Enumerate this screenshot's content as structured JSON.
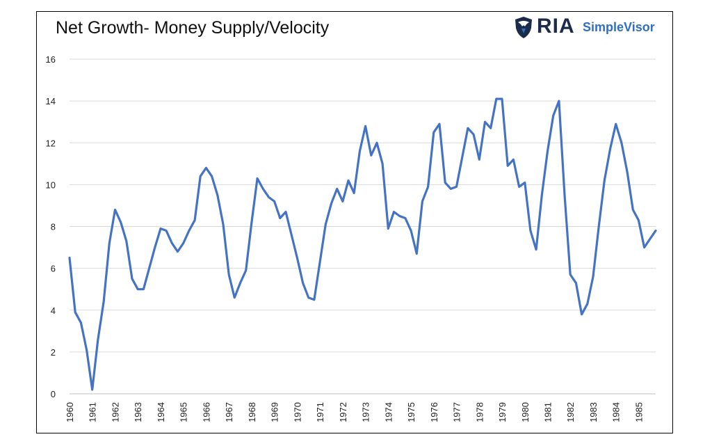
{
  "header": {
    "title": "Net Growth- Money Supply/Velocity"
  },
  "logo": {
    "brand": "RIA",
    "product": "SimpleVisor",
    "icon": "eagle-shield-icon",
    "brand_color": "#1c2b4a",
    "product_color": "#2f6fc4"
  },
  "chart_data": {
    "type": "line",
    "title": "Net Growth- Money Supply/Velocity",
    "xlabel": "",
    "ylabel": "",
    "ylim": [
      0,
      16
    ],
    "yticks": [
      "0",
      "2",
      "4",
      "6",
      "8",
      "10",
      "12",
      "14",
      "16"
    ],
    "xticks": [
      "1960",
      "1961",
      "1962",
      "1963",
      "1964",
      "1965",
      "1966",
      "1967",
      "1968",
      "1969",
      "1970",
      "1971",
      "1972",
      "1973",
      "1974",
      "1975",
      "1976",
      "1977",
      "1978",
      "1979",
      "1980",
      "1981",
      "1982",
      "1983",
      "1984",
      "1985"
    ],
    "grid": true,
    "legend": "none",
    "line_color": "#4472c4",
    "series": [
      {
        "x": [
          1960.0,
          1960.25,
          1960.5,
          1960.75,
          1961.0,
          1961.25,
          1961.5,
          1961.75,
          1962.0,
          1962.25,
          1962.5,
          1962.75,
          1963.0,
          1963.25,
          1963.5,
          1963.75,
          1964.0,
          1964.25,
          1964.5,
          1964.75,
          1965.0,
          1965.25,
          1965.5,
          1965.75,
          1966.0,
          1966.25,
          1966.5,
          1966.75,
          1967.0,
          1967.25,
          1967.5,
          1967.75,
          1968.0,
          1968.25,
          1968.5,
          1968.75,
          1969.0,
          1969.25,
          1969.5,
          1969.75,
          1970.0,
          1970.25,
          1970.5,
          1970.75,
          1971.0,
          1971.25,
          1971.5,
          1971.75,
          1972.0,
          1972.25,
          1972.5,
          1972.75,
          1973.0,
          1973.25,
          1973.5,
          1973.75,
          1974.0,
          1974.25,
          1974.5,
          1974.75,
          1975.0,
          1975.25,
          1975.5,
          1975.75,
          1976.0,
          1976.25,
          1976.5,
          1976.75,
          1977.0,
          1977.25,
          1977.5,
          1977.75,
          1978.0,
          1978.25,
          1978.5,
          1978.75,
          1979.0,
          1979.25,
          1979.5,
          1979.75,
          1980.0,
          1980.25,
          1980.5,
          1980.75,
          1981.0,
          1981.25,
          1981.5,
          1981.75,
          1982.0,
          1982.25,
          1982.5,
          1982.75,
          1983.0,
          1983.25,
          1983.5,
          1983.75,
          1984.0,
          1984.25,
          1984.5,
          1984.75,
          1985.0,
          1985.25,
          1985.5,
          1985.75
        ],
        "y": [
          6.5,
          3.9,
          3.4,
          2.1,
          0.2,
          2.6,
          4.4,
          7.2,
          8.8,
          8.2,
          7.3,
          5.5,
          5.0,
          5.0,
          6.0,
          7.0,
          7.9,
          7.8,
          7.2,
          6.8,
          7.2,
          7.8,
          8.3,
          10.4,
          10.8,
          10.4,
          9.5,
          8.1,
          5.7,
          4.6,
          5.3,
          5.9,
          8.2,
          10.3,
          9.8,
          9.4,
          9.2,
          8.4,
          8.7,
          7.6,
          6.5,
          5.3,
          4.6,
          4.5,
          6.3,
          8.1,
          9.1,
          9.8,
          9.2,
          10.2,
          9.6,
          11.6,
          12.8,
          11.4,
          12.0,
          11.0,
          7.9,
          8.7,
          8.5,
          8.4,
          7.8,
          6.7,
          9.2,
          9.9,
          12.5,
          12.9,
          10.1,
          9.8,
          9.9,
          11.3,
          12.7,
          12.4,
          11.2,
          13.0,
          12.7,
          14.1,
          14.1,
          10.9,
          11.2,
          9.9,
          10.1,
          7.8,
          6.9,
          9.5,
          11.6,
          13.3,
          14.0,
          9.5,
          5.7,
          5.3,
          3.8,
          4.3,
          5.6,
          8.0,
          10.2,
          11.7,
          12.9,
          12.0,
          10.6,
          8.8,
          8.3,
          7.0,
          7.4,
          7.8
        ]
      }
    ]
  }
}
